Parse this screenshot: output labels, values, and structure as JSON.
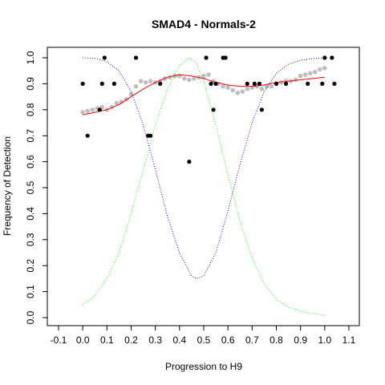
{
  "chart_data": {
    "type": "scatter",
    "title": "SMAD4 - Normals-2",
    "xlabel": "Progression to H9",
    "ylabel": "Frequency of Detection",
    "xlim": [
      -0.1,
      1.1
    ],
    "ylim": [
      0.0,
      1.0
    ],
    "x_ticks": [
      -0.1,
      0.0,
      0.1,
      0.2,
      0.3,
      0.4,
      0.5,
      0.6,
      0.7,
      0.8,
      0.9,
      1.0,
      1.1
    ],
    "y_ticks": [
      0.0,
      0.1,
      0.2,
      0.3,
      0.4,
      0.5,
      0.6,
      0.7,
      0.8,
      0.9,
      1.0
    ],
    "grid": false,
    "legend": false,
    "colors": {
      "observed": "#000000",
      "smoothed": "#bebebe",
      "fit": "#ff0000",
      "blue_curve": "#0000ff",
      "green_curve": "#00ff00"
    },
    "series": [
      {
        "kind": "points",
        "color": "#000000",
        "points": [
          [
            0.0,
            0.9
          ],
          [
            0.02,
            0.7
          ],
          [
            0.07,
            0.8
          ],
          [
            0.08,
            0.9
          ],
          [
            0.09,
            1.0
          ],
          [
            0.13,
            0.9
          ],
          [
            0.22,
            1.0
          ],
          [
            0.27,
            0.7
          ],
          [
            0.28,
            0.7
          ],
          [
            0.32,
            0.9
          ],
          [
            0.44,
            0.6
          ],
          [
            0.51,
            1.0
          ],
          [
            0.53,
            0.9
          ],
          [
            0.54,
            0.8
          ],
          [
            0.55,
            0.9
          ],
          [
            0.58,
            1.0
          ],
          [
            0.59,
            1.0
          ],
          [
            0.68,
            0.9
          ],
          [
            0.71,
            0.9
          ],
          [
            0.73,
            0.9
          ],
          [
            0.74,
            0.8
          ],
          [
            0.8,
            0.9
          ],
          [
            0.84,
            0.9
          ],
          [
            0.93,
            0.9
          ],
          [
            0.99,
            0.9
          ],
          [
            1.0,
            1.0
          ],
          [
            1.03,
            1.0
          ],
          [
            1.04,
            0.9
          ]
        ]
      },
      {
        "kind": "smoothed-points",
        "color": "#bebebe",
        "points": [
          [
            0.0,
            0.79
          ],
          [
            0.02,
            0.795
          ],
          [
            0.04,
            0.8
          ],
          [
            0.06,
            0.805
          ],
          [
            0.08,
            0.81
          ],
          [
            0.1,
            0.8
          ],
          [
            0.12,
            0.81
          ],
          [
            0.14,
            0.825
          ],
          [
            0.16,
            0.83
          ],
          [
            0.18,
            0.84
          ],
          [
            0.2,
            0.86
          ],
          [
            0.22,
            0.89
          ],
          [
            0.24,
            0.91
          ],
          [
            0.26,
            0.905
          ],
          [
            0.28,
            0.91
          ],
          [
            0.3,
            0.905
          ],
          [
            0.32,
            0.91
          ],
          [
            0.34,
            0.92
          ],
          [
            0.36,
            0.925
          ],
          [
            0.38,
            0.93
          ],
          [
            0.4,
            0.93
          ],
          [
            0.42,
            0.92
          ],
          [
            0.44,
            0.915
          ],
          [
            0.46,
            0.92
          ],
          [
            0.48,
            0.925
          ],
          [
            0.5,
            0.93
          ],
          [
            0.52,
            0.935
          ],
          [
            0.54,
            0.91
          ],
          [
            0.56,
            0.9
          ],
          [
            0.58,
            0.89
          ],
          [
            0.6,
            0.885
          ],
          [
            0.62,
            0.875
          ],
          [
            0.64,
            0.865
          ],
          [
            0.66,
            0.87
          ],
          [
            0.68,
            0.88
          ],
          [
            0.7,
            0.885
          ],
          [
            0.72,
            0.89
          ],
          [
            0.74,
            0.88
          ],
          [
            0.76,
            0.89
          ],
          [
            0.78,
            0.89
          ],
          [
            0.8,
            0.9
          ],
          [
            0.82,
            0.905
          ],
          [
            0.84,
            0.91
          ],
          [
            0.86,
            0.91
          ],
          [
            0.88,
            0.915
          ],
          [
            0.9,
            0.93
          ],
          [
            0.92,
            0.935
          ],
          [
            0.94,
            0.94
          ],
          [
            0.96,
            0.945
          ],
          [
            0.98,
            0.955
          ],
          [
            1.0,
            0.96
          ]
        ]
      },
      {
        "kind": "line",
        "color": "#ff0000",
        "points": [
          [
            0.0,
            0.78
          ],
          [
            0.05,
            0.79
          ],
          [
            0.1,
            0.8
          ],
          [
            0.15,
            0.82
          ],
          [
            0.2,
            0.85
          ],
          [
            0.25,
            0.88
          ],
          [
            0.3,
            0.905
          ],
          [
            0.35,
            0.925
          ],
          [
            0.4,
            0.935
          ],
          [
            0.45,
            0.93
          ],
          [
            0.5,
            0.92
          ],
          [
            0.55,
            0.905
          ],
          [
            0.6,
            0.895
          ],
          [
            0.65,
            0.89
          ],
          [
            0.7,
            0.89
          ],
          [
            0.75,
            0.895
          ],
          [
            0.8,
            0.905
          ],
          [
            0.85,
            0.91
          ],
          [
            0.9,
            0.915
          ],
          [
            0.95,
            0.92
          ],
          [
            1.0,
            0.925
          ]
        ]
      },
      {
        "kind": "dotted-line",
        "color": "#0000ff",
        "points": [
          [
            0.0,
            1.0
          ],
          [
            0.05,
            0.998
          ],
          [
            0.1,
            0.985
          ],
          [
            0.15,
            0.95
          ],
          [
            0.2,
            0.87
          ],
          [
            0.25,
            0.74
          ],
          [
            0.3,
            0.57
          ],
          [
            0.35,
            0.39
          ],
          [
            0.4,
            0.25
          ],
          [
            0.45,
            0.16
          ],
          [
            0.47,
            0.15
          ],
          [
            0.5,
            0.16
          ],
          [
            0.55,
            0.25
          ],
          [
            0.6,
            0.41
          ],
          [
            0.65,
            0.59
          ],
          [
            0.7,
            0.75
          ],
          [
            0.75,
            0.87
          ],
          [
            0.8,
            0.94
          ],
          [
            0.85,
            0.975
          ],
          [
            0.9,
            0.99
          ],
          [
            0.95,
            0.997
          ],
          [
            1.0,
            1.0
          ]
        ]
      },
      {
        "kind": "dotted-line",
        "color": "#00ff00",
        "points": [
          [
            0.0,
            0.05
          ],
          [
            0.05,
            0.085
          ],
          [
            0.1,
            0.15
          ],
          [
            0.15,
            0.25
          ],
          [
            0.2,
            0.4
          ],
          [
            0.25,
            0.57
          ],
          [
            0.3,
            0.74
          ],
          [
            0.35,
            0.88
          ],
          [
            0.4,
            0.97
          ],
          [
            0.44,
            1.0
          ],
          [
            0.47,
            0.98
          ],
          [
            0.5,
            0.91
          ],
          [
            0.55,
            0.74
          ],
          [
            0.6,
            0.55
          ],
          [
            0.65,
            0.37
          ],
          [
            0.7,
            0.23
          ],
          [
            0.75,
            0.13
          ],
          [
            0.8,
            0.07
          ],
          [
            0.85,
            0.04
          ],
          [
            0.9,
            0.025
          ],
          [
            0.95,
            0.015
          ],
          [
            1.0,
            0.01
          ]
        ]
      }
    ]
  }
}
